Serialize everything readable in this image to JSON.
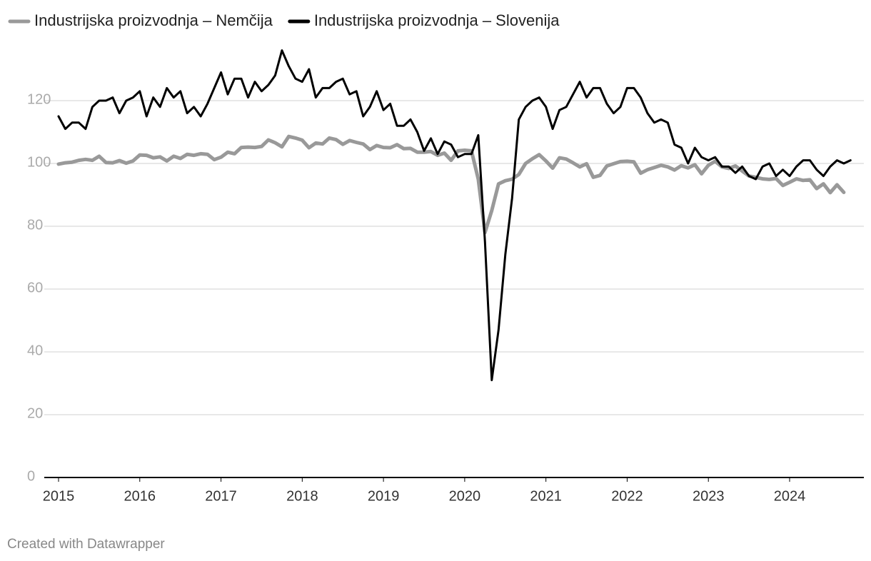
{
  "chart_data": {
    "type": "line",
    "categories": [
      "2015",
      null,
      null,
      null,
      null,
      null,
      null,
      null,
      null,
      null,
      null,
      null,
      "2016",
      null,
      null,
      null,
      null,
      null,
      null,
      null,
      null,
      null,
      null,
      null,
      "2017",
      null,
      null,
      null,
      null,
      null,
      null,
      null,
      null,
      null,
      null,
      null,
      "2018",
      null,
      null,
      null,
      null,
      null,
      null,
      null,
      null,
      null,
      null,
      null,
      "2019",
      null,
      null,
      null,
      null,
      null,
      null,
      null,
      null,
      null,
      null,
      null,
      "2020",
      null,
      null,
      null,
      null,
      null,
      null,
      null,
      null,
      null,
      null,
      null,
      "2021",
      null,
      null,
      null,
      null,
      null,
      null,
      null,
      null,
      null,
      null,
      null,
      "2022",
      null,
      null,
      null,
      null,
      null,
      null,
      null,
      null,
      null,
      null,
      null,
      "2023",
      null,
      null,
      null,
      null,
      null,
      null,
      null,
      null,
      null,
      null,
      null,
      "2024",
      null,
      null,
      null,
      null,
      null,
      null,
      null,
      null,
      null
    ],
    "series": [
      {
        "name": "Industrijska proizvodnja – Nemčija",
        "color": "#999999",
        "values": [
          99.8,
          100.2,
          100.4,
          101.0,
          101.3,
          101.0,
          102.3,
          100.3,
          100.2,
          100.9,
          100.1,
          100.8,
          102.7,
          102.6,
          101.8,
          102.1,
          100.8,
          102.3,
          101.6,
          102.9,
          102.6,
          103.1,
          102.9,
          101.2,
          102.0,
          103.6,
          103.1,
          105.1,
          105.2,
          105.1,
          105.4,
          107.5,
          106.6,
          105.3,
          108.6,
          108.1,
          107.4,
          105.0,
          106.5,
          106.2,
          108.1,
          107.6,
          106.1,
          107.3,
          106.7,
          106.2,
          104.4,
          105.7,
          105.1,
          105.0,
          106.0,
          104.7,
          104.8,
          103.6,
          103.6,
          103.8,
          102.6,
          103.3,
          101.0,
          104.0,
          104.2,
          104.0,
          95.0,
          78.0,
          85.0,
          93.5,
          94.5,
          95.0,
          96.5,
          100.0,
          101.5,
          102.8,
          100.8,
          98.5,
          101.8,
          101.4,
          100.2,
          98.9,
          99.9,
          95.6,
          96.2,
          99.2,
          99.9,
          100.6,
          100.7,
          100.5,
          96.9,
          98.0,
          98.7,
          99.4,
          98.9,
          97.9,
          99.3,
          98.6,
          99.6,
          96.7,
          99.4,
          100.7,
          98.9,
          98.4,
          99.2,
          97.6,
          96.0,
          95.6,
          95.1,
          94.9,
          95.2,
          93.0,
          94.0,
          95.1,
          94.6,
          94.8,
          92.0,
          93.5,
          90.7,
          93.2,
          90.8,
          null
        ]
      },
      {
        "name": "Industrijska proizvodnja – Slovenija",
        "color": "#000000",
        "values": [
          115,
          111,
          113,
          113,
          111,
          118,
          120,
          120,
          121,
          116,
          120,
          121,
          123,
          115,
          121,
          118,
          124,
          121,
          123,
          116,
          118,
          115,
          119,
          124,
          129,
          122,
          127,
          127,
          121,
          126,
          123,
          125,
          128,
          136,
          131,
          127,
          126,
          130,
          121,
          124,
          124,
          126,
          127,
          122,
          123,
          115,
          118,
          123,
          117,
          119,
          112,
          112,
          114,
          110,
          104,
          108,
          103,
          107,
          106,
          102,
          103,
          103,
          109,
          75,
          31,
          47,
          71,
          89,
          114,
          118,
          120,
          121,
          118,
          111,
          117,
          118,
          122,
          126,
          121,
          124,
          124,
          119,
          116,
          118,
          124,
          124,
          121,
          116,
          113,
          114,
          113,
          106,
          105,
          100,
          105,
          102,
          101,
          102,
          99,
          99,
          97,
          99,
          96,
          95,
          99,
          100,
          96,
          98,
          96,
          99,
          101,
          101,
          98,
          96,
          99,
          101,
          100,
          101
        ]
      }
    ],
    "ylim": [
      0,
      140
    ],
    "yticks": [
      0,
      20,
      40,
      60,
      80,
      100,
      120
    ],
    "grid": true,
    "legend": "top-left",
    "footer": "Created with Datawrapper"
  }
}
